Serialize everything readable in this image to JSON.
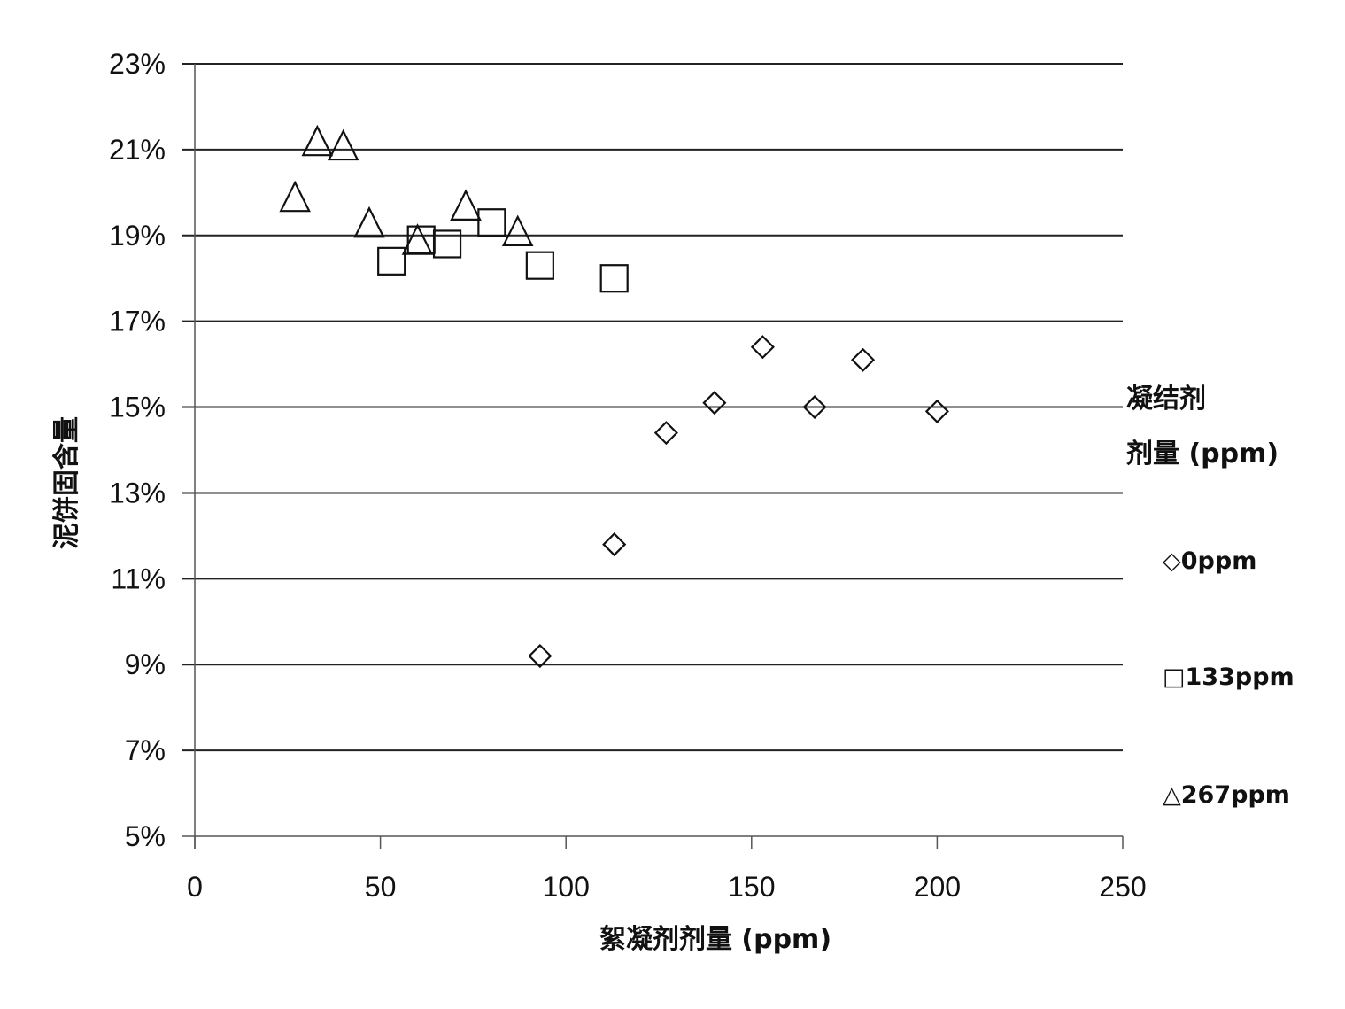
{
  "chart_data": {
    "type": "scatter",
    "title": "",
    "xlabel": "絮凝剂剂量 (ppm)",
    "ylabel": "泥饼固含量",
    "xlim": [
      0,
      250
    ],
    "ylim": [
      5,
      23
    ],
    "xticks": [
      0,
      50,
      100,
      150,
      200,
      250
    ],
    "yticks": [
      5,
      7,
      9,
      11,
      13,
      15,
      17,
      19,
      21,
      23
    ],
    "ytick_format": "%",
    "grid": "horizontal",
    "legend": {
      "position": "right",
      "title_line1": "凝结剂",
      "title_line2": "剂量 (ppm)"
    },
    "series": [
      {
        "name": "0ppm",
        "marker": "diamond",
        "legend_label": "◇0ppm",
        "points": [
          {
            "x": 93,
            "y": 9.2
          },
          {
            "x": 113,
            "y": 11.8
          },
          {
            "x": 127,
            "y": 14.4
          },
          {
            "x": 140,
            "y": 15.1
          },
          {
            "x": 153,
            "y": 16.4
          },
          {
            "x": 167,
            "y": 15.0
          },
          {
            "x": 180,
            "y": 16.1
          },
          {
            "x": 200,
            "y": 14.9
          }
        ]
      },
      {
        "name": "133ppm",
        "marker": "square",
        "legend_label": "□133ppm",
        "points": [
          {
            "x": 53,
            "y": 18.4
          },
          {
            "x": 61,
            "y": 18.9
          },
          {
            "x": 68,
            "y": 18.8
          },
          {
            "x": 80,
            "y": 19.3
          },
          {
            "x": 93,
            "y": 18.3
          },
          {
            "x": 113,
            "y": 18.0
          }
        ]
      },
      {
        "name": "267ppm",
        "marker": "triangle",
        "legend_label": "△267ppm",
        "points": [
          {
            "x": 27,
            "y": 19.9
          },
          {
            "x": 33,
            "y": 21.2
          },
          {
            "x": 40,
            "y": 21.1
          },
          {
            "x": 47,
            "y": 19.3
          },
          {
            "x": 60,
            "y": 18.9
          },
          {
            "x": 73,
            "y": 19.7
          },
          {
            "x": 87,
            "y": 19.1
          }
        ]
      }
    ]
  }
}
